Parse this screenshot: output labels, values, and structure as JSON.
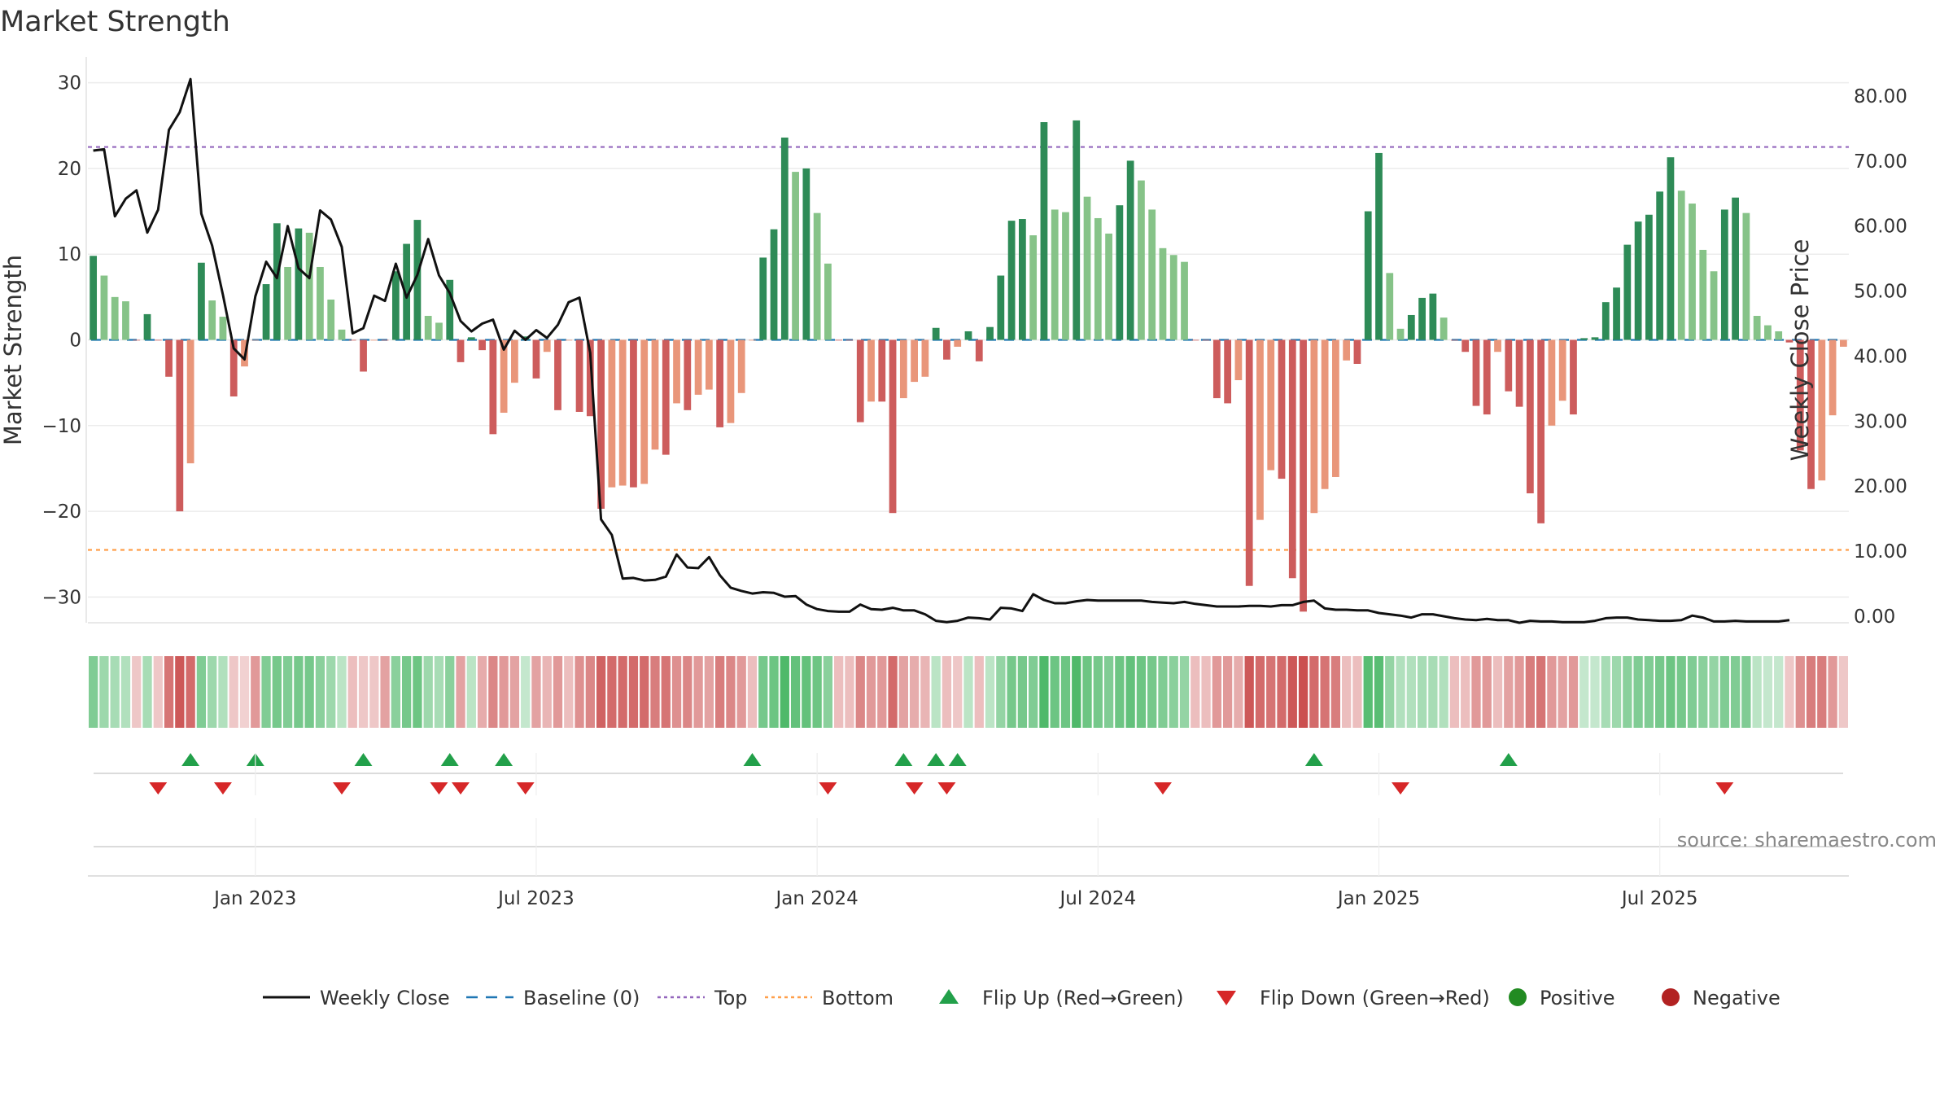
{
  "chart_data": {
    "type": "bar",
    "title": "Market Strength",
    "ylabel": "Market Strength",
    "y2label": "Weekly Close Price",
    "ylim": [
      -33,
      33
    ],
    "y2lim": [
      -1,
      86
    ],
    "yticks": [
      30,
      20,
      10,
      0,
      -10,
      -20,
      -30
    ],
    "y_tick_labels": [
      "30",
      "20",
      "10",
      "0",
      "−10",
      "−20",
      "−30"
    ],
    "y2ticks": [
      80,
      70,
      60,
      50,
      40,
      30,
      20,
      10,
      0
    ],
    "y2_tick_labels": [
      "80.00",
      "70.00",
      "60.00",
      "50.00",
      "40.00",
      "30.00",
      "20.00",
      "10.00",
      "0.00"
    ],
    "top_line": 22.5,
    "bottom_line": -24.5,
    "x_tick_labels": [
      "Jan 2023",
      "Jul 2023",
      "Jan 2024",
      "Jul 2024",
      "Jan 2025",
      "Jul 2025"
    ],
    "x_tick_weeks": [
      15,
      41,
      67,
      93,
      119,
      145
    ],
    "strength": [
      9.8,
      7.5,
      5,
      4.5,
      0,
      3,
      0,
      -4.3,
      -20,
      -14.4,
      9,
      4.6,
      2.7,
      -6.6,
      -3.1,
      0,
      6.5,
      13.6,
      8.5,
      13,
      12.5,
      8.5,
      4.7,
      1.2,
      0,
      -3.7,
      0,
      0,
      8,
      11.2,
      14,
      2.8,
      2,
      7,
      -2.6,
      0.3,
      -1.2,
      -11,
      -8.5,
      -5,
      0.4,
      -4.5,
      -1.4,
      -8.2,
      0,
      -8.4,
      -8.9,
      -19.7,
      -17.2,
      -17,
      -17.2,
      -16.8,
      -12.8,
      -13.4,
      -7.4,
      -8.2,
      -6.4,
      -5.8,
      -10.2,
      -9.7,
      -6.2,
      0,
      9.6,
      12.9,
      23.6,
      19.6,
      20,
      14.8,
      8.9,
      0,
      0,
      -9.6,
      -7.2,
      -7.2,
      -20.2,
      -6.8,
      -4.9,
      -4.3,
      1.4,
      -2.3,
      -0.8,
      1,
      -2.5,
      1.5,
      7.5,
      13.9,
      14.1,
      12.2,
      25.4,
      15.2,
      14.9,
      25.6,
      16.7,
      14.2,
      12.4,
      15.7,
      20.9,
      18.6,
      15.2,
      10.7,
      9.9,
      9.1,
      0,
      0,
      -6.8,
      -7.4,
      -4.7,
      -28.7,
      -21,
      -15.2,
      -16.2,
      -27.8,
      -31.7,
      -20.2,
      -17.4,
      -16,
      -2.4,
      -2.8,
      15,
      21.8,
      7.8,
      1.3,
      2.9,
      4.9,
      5.4,
      2.6,
      0,
      -1.4,
      -7.7,
      -8.7,
      -1.4,
      -6,
      -7.8,
      -17.9,
      -21.4,
      -10,
      -7.1,
      -8.7,
      0.2,
      0.3,
      4.4,
      6.1,
      11.1,
      13.8,
      14.6,
      17.3,
      21.3,
      17.4,
      15.9,
      10.5,
      8,
      15.2,
      16.6,
      14.8,
      2.8,
      1.7,
      1,
      -0.3,
      -12.9,
      -17.4,
      -16.4,
      -8.8,
      -0.8
    ],
    "weekly_close": [
      71.6,
      71.8,
      61.5,
      64.2,
      65.5,
      59,
      62.5,
      74.8,
      77.5,
      82.6,
      61.9,
      57,
      49.4,
      41.2,
      39.5,
      49.2,
      54.5,
      52,
      60,
      53.5,
      52,
      62.4,
      61,
      56.8,
      43.5,
      44.3,
      49.3,
      48.5,
      54.2,
      49,
      52.5,
      58,
      52.4,
      49.7,
      45.4,
      43.8,
      45,
      45.6,
      41,
      43.9,
      42.5,
      44,
      42.8,
      44.8,
      48.3,
      49,
      40.5,
      14.9,
      12.5,
      5.8,
      5.9,
      5.5,
      5.6,
      6.1,
      9.5,
      7.5,
      7.4,
      9.1,
      6.3,
      4.4,
      3.9,
      3.5,
      3.7,
      3.6,
      3,
      3.1,
      1.8,
      1.1,
      0.8,
      0.7,
      0.7,
      1.8,
      1.1,
      1,
      1.3,
      0.9,
      0.9,
      0.3,
      -0.7,
      -0.9,
      -0.7,
      -0.2,
      -0.3,
      -0.5,
      1.3,
      1.2,
      0.8,
      3.4,
      2.5,
      2,
      2,
      2.3,
      2.5,
      2.4,
      2.4,
      2.4,
      2.4,
      2.4,
      2.2,
      2.1,
      2.0,
      2.2,
      1.9,
      1.7,
      1.5,
      1.5,
      1.5,
      1.6,
      1.6,
      1.5,
      1.7,
      1.7,
      2.2,
      2.4,
      1.2,
      1,
      1,
      0.9,
      0.9,
      0.5,
      0.3,
      0.1,
      -0.2,
      0.3,
      0.3,
      0,
      -0.3,
      -0.5,
      -0.6,
      -0.4,
      -0.6,
      -0.6,
      -1,
      -0.7,
      -0.8,
      -0.8,
      -0.9,
      -0.9,
      -0.9,
      -0.7,
      -0.3,
      -0.2,
      -0.2,
      -0.5,
      -0.6,
      -0.7,
      -0.7,
      -0.6,
      0.1,
      -0.2,
      -0.8,
      -0.8,
      -0.7,
      -0.8,
      -0.8,
      -0.8,
      -0.8,
      -0.6
    ],
    "flip_up_weeks": [
      9,
      15,
      25,
      33,
      38,
      61,
      75,
      78,
      80,
      113,
      131
    ],
    "flip_down_weeks": [
      6,
      12,
      23,
      32,
      34,
      40,
      68,
      76,
      79,
      99,
      121,
      151
    ],
    "heat_alphas": [
      0.65,
      0.5,
      0.45,
      0.4,
      0.3,
      0.45,
      0.3,
      0.75,
      0.9,
      0.8,
      0.65,
      0.5,
      0.4,
      0.3,
      0.25,
      0.55,
      0.65,
      0.7,
      0.65,
      0.7,
      0.7,
      0.6,
      0.5,
      0.35,
      0.35,
      0.3,
      0.3,
      0.5,
      0.6,
      0.7,
      0.75,
      0.5,
      0.45,
      0.6,
      0.5,
      0.35,
      0.45,
      0.65,
      0.55,
      0.5,
      0.3,
      0.5,
      0.4,
      0.55,
      0.35,
      0.6,
      0.65,
      0.85,
      0.8,
      0.8,
      0.8,
      0.8,
      0.7,
      0.75,
      0.6,
      0.65,
      0.55,
      0.5,
      0.7,
      0.65,
      0.55,
      0.35,
      0.7,
      0.75,
      0.9,
      0.8,
      0.8,
      0.75,
      0.6,
      0.35,
      0.35,
      0.65,
      0.55,
      0.55,
      0.8,
      0.5,
      0.45,
      0.4,
      0.35,
      0.35,
      0.3,
      0.35,
      0.35,
      0.35,
      0.55,
      0.7,
      0.7,
      0.65,
      0.9,
      0.75,
      0.75,
      0.9,
      0.75,
      0.7,
      0.65,
      0.75,
      0.8,
      0.75,
      0.7,
      0.65,
      0.6,
      0.55,
      0.35,
      0.35,
      0.55,
      0.55,
      0.45,
      0.9,
      0.8,
      0.75,
      0.8,
      0.9,
      0.95,
      0.8,
      0.75,
      0.7,
      0.35,
      0.35,
      0.85,
      0.85,
      0.55,
      0.4,
      0.4,
      0.45,
      0.45,
      0.4,
      0.35,
      0.35,
      0.55,
      0.55,
      0.35,
      0.5,
      0.55,
      0.7,
      0.75,
      0.55,
      0.5,
      0.55,
      0.3,
      0.3,
      0.45,
      0.5,
      0.6,
      0.65,
      0.65,
      0.7,
      0.75,
      0.7,
      0.65,
      0.6,
      0.55,
      0.65,
      0.65,
      0.65,
      0.35,
      0.3,
      0.3,
      0.3,
      0.6,
      0.7,
      0.7,
      0.55,
      0.3
    ],
    "legend": [
      "Weekly Close",
      "Baseline (0)",
      "Top",
      "Bottom",
      "Flip Up (Red→Green)",
      "Flip Down (Green→Red)",
      "Positive",
      "Negative"
    ],
    "source": "source: sharemaestro.com",
    "colors": {
      "pos_dark": "#2e8b57",
      "pos_light": "#86c388",
      "neg_dark": "#cd5c5c",
      "neg_light": "#e9967a",
      "line": "#111111",
      "baseline": "#1f77b4",
      "top": "#9467bd",
      "bottom": "#ff9f4a",
      "flip_up": "#22a04a",
      "flip_down": "#d62728",
      "positive_dot": "#228b22",
      "negative_dot": "#b22222",
      "heat_pos": "#3cb15a",
      "heat_neg": "#c84646"
    }
  }
}
